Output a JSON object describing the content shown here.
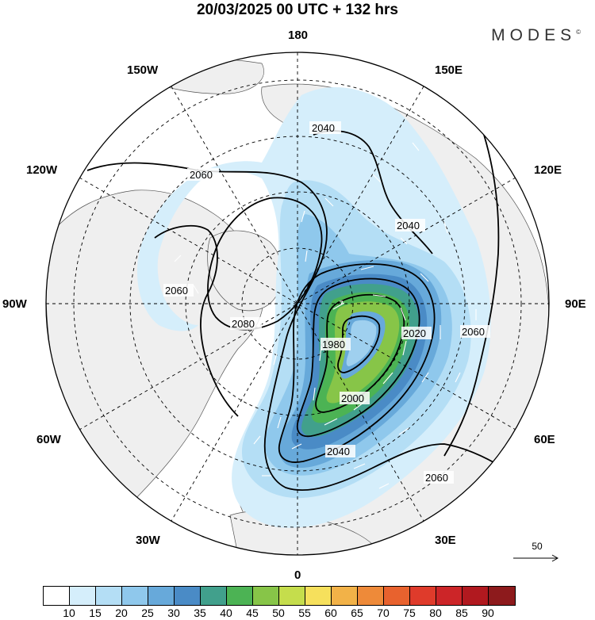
{
  "header": {
    "title": "20/03/2025  00 UTC  + 132 hrs",
    "brand": "MODES",
    "brand_mark": "©"
  },
  "longitude_labels": {
    "lon_180": "180",
    "lon_150e": "150E",
    "lon_120e": "120E",
    "lon_90e": "90E",
    "lon_60e": "60E",
    "lon_30e": "30E",
    "lon_0": "0",
    "lon_30w": "30W",
    "lon_60w": "60W",
    "lon_90w": "90W",
    "lon_120w": "120W",
    "lon_150w": "150W"
  },
  "contour_labels": {
    "c2040a": "2040",
    "c2060a": "2060",
    "c2040b": "2040",
    "c2060b": "2060",
    "c2080": "2080",
    "c1980": "1980",
    "c2020": "2020",
    "c2000": "2000",
    "c2040c": "2040",
    "c2060c": "2060",
    "c2060d": "2060"
  },
  "reference_vector": {
    "value": "50"
  },
  "colorbar": {
    "colors": [
      "#ffffff",
      "#d5eefb",
      "#b4def5",
      "#8fc8ec",
      "#67a9da",
      "#4a8bc6",
      "#41a08c",
      "#4cb354",
      "#87c548",
      "#c5dd4c",
      "#f6e05c",
      "#f2b248",
      "#ee8a39",
      "#e8622e",
      "#df3b2b",
      "#cc2528",
      "#b1191f",
      "#8d1a1c"
    ],
    "ticks": [
      "10",
      "15",
      "20",
      "25",
      "30",
      "35",
      "40",
      "45",
      "50",
      "55",
      "60",
      "65",
      "70",
      "75",
      "80",
      "85",
      "90"
    ]
  },
  "shading_palette": {
    "light": "#c9e6f7",
    "mid": "#9fd0ef",
    "strong": "#5ea7d8",
    "deep": "#3d86c0",
    "teal": "#3f9c86",
    "green": "#4cb354",
    "lime": "#9fd04c"
  }
}
